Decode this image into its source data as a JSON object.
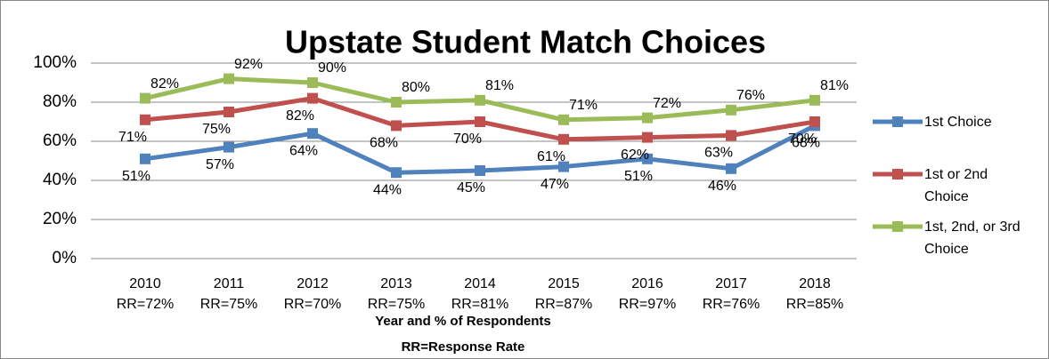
{
  "chart_data": {
    "type": "line",
    "title": "Upstate Student Match Choices",
    "xlabel": [
      "Year and % of Respondents",
      "RR=Response Rate"
    ],
    "categories": [
      [
        "2010",
        "RR=72%"
      ],
      [
        "2011",
        "RR=75%"
      ],
      [
        "2012",
        "RR=70%"
      ],
      [
        "2013",
        "RR=75%"
      ],
      [
        "2014",
        "RR=81%"
      ],
      [
        "2015",
        "RR=87%"
      ],
      [
        "2016",
        "RR=97%"
      ],
      [
        "2017",
        "RR=76%"
      ],
      [
        "2018",
        "RR=85%"
      ]
    ],
    "series": [
      {
        "name": "1st Choice",
        "color": "#4f81bd",
        "values": [
          51,
          57,
          64,
          44,
          45,
          47,
          51,
          46,
          68
        ],
        "value_labels": [
          "51%",
          "57%",
          "64%",
          "44%",
          "45%",
          "47%",
          "51%",
          "46%",
          "68%"
        ]
      },
      {
        "name": "1st or 2nd Choice",
        "color": "#c0504d",
        "values": [
          71,
          75,
          82,
          68,
          70,
          61,
          62,
          63,
          70
        ],
        "value_labels": [
          "71%",
          "75%",
          "82%",
          "68%",
          "70%",
          "61%",
          "62%",
          "63%",
          "70%"
        ]
      },
      {
        "name": "1st, 2nd, or 3rd Choice",
        "color": "#9bbb59",
        "values": [
          82,
          92,
          90,
          80,
          81,
          71,
          72,
          76,
          81
        ],
        "value_labels": [
          "82%",
          "92%",
          "90%",
          "80%",
          "81%",
          "71%",
          "72%",
          "76%",
          "81%"
        ]
      }
    ],
    "ylim": [
      0,
      100
    ],
    "yticks": [
      {
        "value": 0,
        "label": "0%"
      },
      {
        "value": 20,
        "label": "20%"
      },
      {
        "value": 40,
        "label": "40%"
      },
      {
        "value": 60,
        "label": "60%"
      },
      {
        "value": 80,
        "label": "80%"
      },
      {
        "value": 100,
        "label": "100%"
      }
    ],
    "grid": true,
    "legend": "right"
  }
}
